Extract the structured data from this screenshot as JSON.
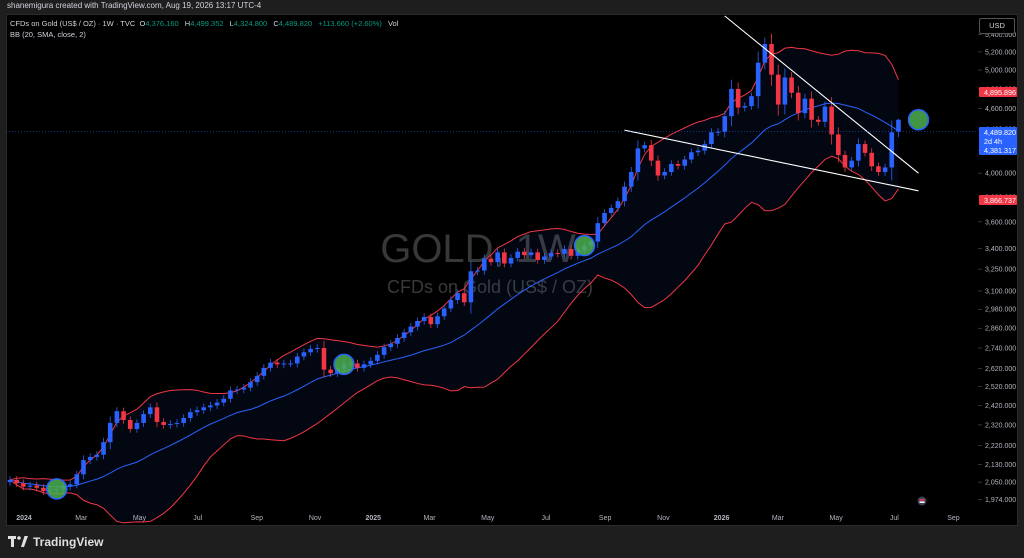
{
  "credit": {
    "user": "shanemigura",
    "text": "created with TradingView.com, Aug 19, 2026 13:17 UTC-4"
  },
  "legend": {
    "symbol": "CFDs on Gold (US$ / OZ) · 1W · TVC",
    "o_label": "O",
    "o": "4,376.160",
    "h_label": "H",
    "h": "4,499.352",
    "l_label": "L",
    "l": "4,324.800",
    "c_label": "C",
    "c": "4,489.820",
    "change": "+113.660 (+2.60%)",
    "vol": "Vol",
    "bb": "BB (20, SMA, close, 2)"
  },
  "currency": "USD",
  "watermark": {
    "title": "GOLD, 1W",
    "subtitle": "CFDs on Gold (US$ / OZ)"
  },
  "brand": {
    "name": "TradingView"
  },
  "price_labels": {
    "bb_upper": "4,895.896",
    "close": "4,489.820",
    "countdown": "2d 4h",
    "bb_basis": "4,381.317",
    "bb_lower": "3,866.737"
  },
  "colors": {
    "up": "#2962ff",
    "down": "#f23645",
    "bb_upper": "#f23645",
    "bb_basis": "#2962ff",
    "bb_lower": "#f23645",
    "trendline": "#ffffff",
    "marker": "#4caf50"
  },
  "chart_data": {
    "type": "candlestick",
    "title": "GOLD, 1W",
    "subtitle": "CFDs on Gold (US$ / OZ)",
    "y_axis": {
      "scale": "log",
      "range": [
        1930,
        5620
      ],
      "position": "right",
      "ticks": [
        5400,
        5200,
        5000,
        4800,
        4600,
        4400,
        4200,
        4000,
        3800,
        3600,
        3400,
        3250,
        3100,
        2980,
        2860,
        2740,
        2620,
        2520,
        2420,
        2320,
        2220,
        2130,
        2050,
        1974
      ],
      "tick_labels": [
        "5,400.000",
        "5,200.000",
        "5,000.000",
        "4,800.000",
        "4,600.000",
        "4,400.000",
        "4,200.000",
        "4,000.000",
        "3,800.000",
        "3,600.000",
        "3,400.000",
        "3,250.000",
        "3,100.000",
        "2,980.000",
        "2,860.000",
        "2,740.000",
        "2,620.000",
        "2,520.000",
        "2,420.000",
        "2,320.000",
        "2,220.000",
        "2,130.000",
        "2,050.000",
        "1,974.000"
      ]
    },
    "x_axis": {
      "tick_labels": [
        "2024",
        "Mar",
        "May",
        "Jul",
        "Sep",
        "Nov",
        "2025",
        "Mar",
        "May",
        "Jul",
        "Sep",
        "Nov",
        "2026",
        "Mar",
        "May",
        "Jul",
        "Sep"
      ]
    },
    "weekly_close": [
      2060,
      2045,
      2030,
      2035,
      2025,
      2010,
      2015,
      2020,
      2030,
      2040,
      2085,
      2150,
      2165,
      2175,
      2235,
      2330,
      2390,
      2345,
      2300,
      2330,
      2375,
      2410,
      2335,
      2320,
      2325,
      2330,
      2355,
      2385,
      2395,
      2410,
      2420,
      2435,
      2455,
      2500,
      2505,
      2515,
      2545,
      2580,
      2625,
      2655,
      2645,
      2650,
      2650,
      2690,
      2715,
      2735,
      2740,
      2615,
      2595,
      2620,
      2645,
      2650,
      2625,
      2645,
      2665,
      2700,
      2745,
      2765,
      2800,
      2835,
      2870,
      2905,
      2930,
      2885,
      2935,
      2985,
      3040,
      3085,
      3025,
      3235,
      3240,
      3325,
      3300,
      3370,
      3290,
      3330,
      3375,
      3350,
      3370,
      3315,
      3340,
      3365,
      3360,
      3395,
      3345,
      3385,
      3420,
      3450,
      3590,
      3670,
      3710,
      3765,
      3885,
      4010,
      4220,
      4250,
      4110,
      3980,
      4010,
      4080,
      4065,
      4120,
      4185,
      4200,
      4260,
      4370,
      4375,
      4525,
      4800,
      4610,
      4625,
      4725,
      5080,
      5290,
      4950,
      4640,
      4920,
      4760,
      4555,
      4700,
      4490,
      4470,
      4620,
      4350,
      4160,
      4050,
      4110,
      4260,
      4180,
      4060,
      4010,
      4050,
      4370,
      4490
    ],
    "bollinger_bands": {
      "period": 20,
      "stddev": 2,
      "type": "SMA",
      "upper_last": 4895.896,
      "basis_last": 4381.317,
      "lower_last": 3866.737
    },
    "last": {
      "open": 4376.16,
      "high": 4499.352,
      "low": 4324.8,
      "close": 4489.82,
      "change": 113.66,
      "change_pct": 2.6
    },
    "trendlines": [
      {
        "from_date": "2026-01-19",
        "from_price": 5620,
        "to_date": "2026-08-10",
        "to_price": 4000
      },
      {
        "from_date": "2025-10-06",
        "from_price": 4390,
        "to_date": "2026-08-10",
        "to_price": 3850
      }
    ],
    "markers": [
      {
        "date": "2024-02-19"
      },
      {
        "date": "2024-12-16"
      },
      {
        "date": "2025-08-25"
      },
      {
        "date": "2026-08-10"
      }
    ]
  }
}
